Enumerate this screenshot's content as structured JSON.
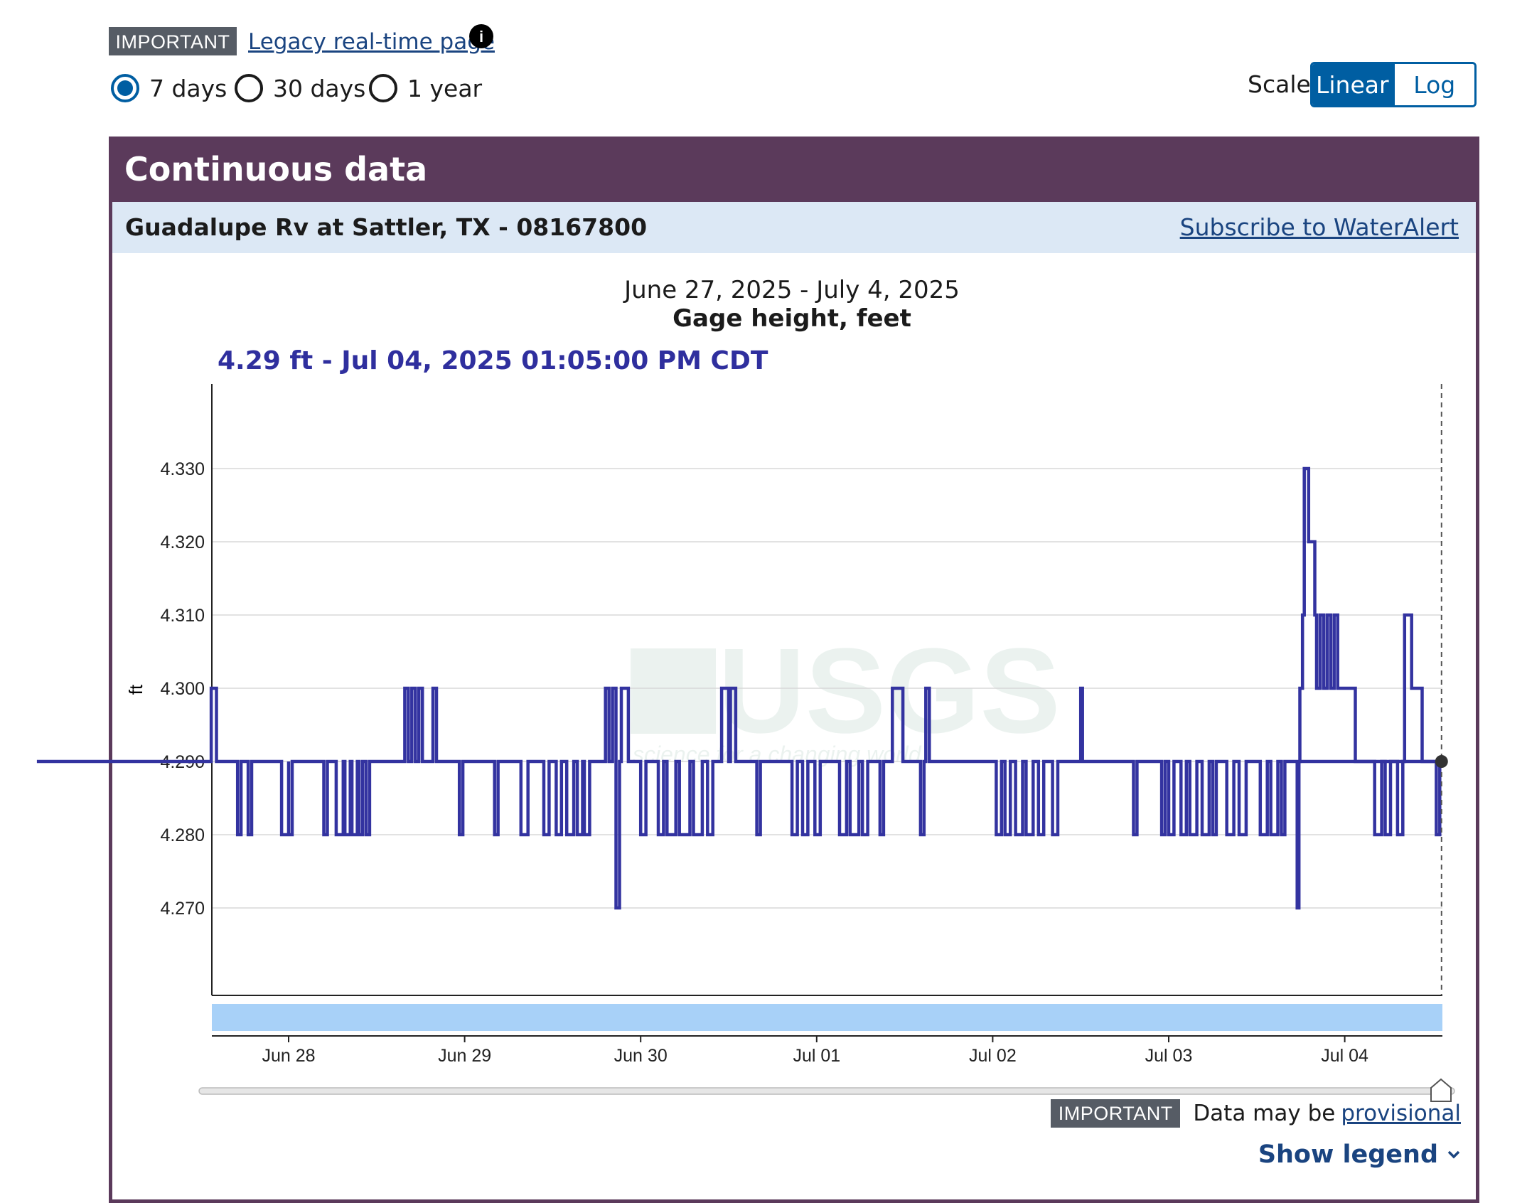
{
  "top": {
    "important_badge": "IMPORTANT",
    "legacy_link": "Legacy real-time page ",
    "info_glyph": "i",
    "period_options": [
      {
        "label": "7 days",
        "checked": true
      },
      {
        "label": "30 days",
        "checked": false
      },
      {
        "label": "1 year",
        "checked": false
      }
    ],
    "scale_label": "Scale",
    "scale_options": [
      "Linear",
      "Log"
    ],
    "scale_selected": "Linear"
  },
  "card": {
    "header": "Continuous data",
    "site_name": "Guadalupe Rv at Sattler, TX - 08167800",
    "subscribe_link": "Subscribe to WaterAlert"
  },
  "chart": {
    "date_range": "June 27, 2025 - July 4, 2025",
    "title": "Gage height, feet",
    "readout": "4.29 ft - Jul 04, 2025 01:05:00 PM CDT",
    "watermark": "USGS",
    "watermark_tagline": "science for a changing world"
  },
  "chart_data": {
    "type": "line",
    "title": "Gage height, feet",
    "subtitle": "June 27, 2025 - July 4, 2025",
    "ylabel": "ft",
    "ylim": [
      4.258,
      4.342
    ],
    "yticks": [
      4.27,
      4.28,
      4.29,
      4.3,
      4.31,
      4.32,
      4.33
    ],
    "ytick_labels": [
      "4.270",
      "4.280",
      "4.290",
      "4.300",
      "4.310",
      "4.320",
      "4.330"
    ],
    "xlim_days": [
      -0.44,
      6.55
    ],
    "x_ticks": [
      {
        "day": 1,
        "label": "Jun 28"
      },
      {
        "day": 2,
        "label": "Jun 29"
      },
      {
        "day": 3,
        "label": "Jun 30"
      },
      {
        "day": 4,
        "label": "Jul 01"
      },
      {
        "day": 5,
        "label": "Jul 02"
      },
      {
        "day": 6,
        "label": "Jul 03"
      },
      {
        "day": 7,
        "label": "Jul 04"
      }
    ],
    "baseline": 4.29,
    "excursions": [
      {
        "day": 0.56,
        "end": 0.59,
        "value": 4.3
      },
      {
        "day": 0.71,
        "end": 0.73,
        "value": 4.28
      },
      {
        "day": 0.77,
        "end": 0.79,
        "value": 4.28
      },
      {
        "day": 0.96,
        "end": 1.0,
        "value": 4.28
      },
      {
        "day": 1.0,
        "end": 1.02,
        "value": 4.28
      },
      {
        "day": 1.2,
        "end": 1.22,
        "value": 4.28
      },
      {
        "day": 1.27,
        "end": 1.31,
        "value": 4.28
      },
      {
        "day": 1.32,
        "end": 1.35,
        "value": 4.28
      },
      {
        "day": 1.36,
        "end": 1.39,
        "value": 4.28
      },
      {
        "day": 1.4,
        "end": 1.42,
        "value": 4.28
      },
      {
        "day": 1.44,
        "end": 1.46,
        "value": 4.28
      },
      {
        "day": 1.66,
        "end": 1.68,
        "value": 4.3
      },
      {
        "day": 1.7,
        "end": 1.72,
        "value": 4.3
      },
      {
        "day": 1.74,
        "end": 1.76,
        "value": 4.3
      },
      {
        "day": 1.82,
        "end": 1.84,
        "value": 4.3
      },
      {
        "day": 1.97,
        "end": 1.99,
        "value": 4.28
      },
      {
        "day": 2.17,
        "end": 2.19,
        "value": 4.28
      },
      {
        "day": 2.32,
        "end": 2.36,
        "value": 4.28
      },
      {
        "day": 2.45,
        "end": 2.48,
        "value": 4.28
      },
      {
        "day": 2.52,
        "end": 2.55,
        "value": 4.28
      },
      {
        "day": 2.58,
        "end": 2.62,
        "value": 4.28
      },
      {
        "day": 2.64,
        "end": 2.67,
        "value": 4.28
      },
      {
        "day": 2.68,
        "end": 2.71,
        "value": 4.28
      },
      {
        "day": 2.8,
        "end": 2.82,
        "value": 4.3
      },
      {
        "day": 2.84,
        "end": 2.86,
        "value": 4.3
      },
      {
        "day": 2.86,
        "end": 2.88,
        "value": 4.27
      },
      {
        "day": 2.89,
        "end": 2.93,
        "value": 4.3
      },
      {
        "day": 3.0,
        "end": 3.03,
        "value": 4.28
      },
      {
        "day": 3.1,
        "end": 3.13,
        "value": 4.28
      },
      {
        "day": 3.15,
        "end": 3.2,
        "value": 4.28
      },
      {
        "day": 3.22,
        "end": 3.28,
        "value": 4.28
      },
      {
        "day": 3.3,
        "end": 3.35,
        "value": 4.28
      },
      {
        "day": 3.38,
        "end": 3.41,
        "value": 4.28
      },
      {
        "day": 3.46,
        "end": 3.5,
        "value": 4.3
      },
      {
        "day": 3.51,
        "end": 3.54,
        "value": 4.3
      },
      {
        "day": 3.66,
        "end": 3.68,
        "value": 4.28
      },
      {
        "day": 3.86,
        "end": 3.89,
        "value": 4.28
      },
      {
        "day": 3.92,
        "end": 3.95,
        "value": 4.28
      },
      {
        "day": 3.99,
        "end": 4.02,
        "value": 4.28
      },
      {
        "day": 4.13,
        "end": 4.17,
        "value": 4.28
      },
      {
        "day": 4.19,
        "end": 4.24,
        "value": 4.28
      },
      {
        "day": 4.26,
        "end": 4.29,
        "value": 4.28
      },
      {
        "day": 4.36,
        "end": 4.38,
        "value": 4.28
      },
      {
        "day": 4.43,
        "end": 4.49,
        "value": 4.3
      },
      {
        "day": 4.59,
        "end": 4.61,
        "value": 4.28
      },
      {
        "day": 4.62,
        "end": 4.64,
        "value": 4.3
      },
      {
        "day": 5.02,
        "end": 5.05,
        "value": 4.28
      },
      {
        "day": 5.07,
        "end": 5.1,
        "value": 4.28
      },
      {
        "day": 5.13,
        "end": 5.17,
        "value": 4.28
      },
      {
        "day": 5.19,
        "end": 5.23,
        "value": 4.28
      },
      {
        "day": 5.26,
        "end": 5.29,
        "value": 4.28
      },
      {
        "day": 5.34,
        "end": 5.37,
        "value": 4.28
      },
      {
        "day": 5.5,
        "end": 5.51,
        "value": 4.3
      },
      {
        "day": 5.8,
        "end": 5.82,
        "value": 4.28
      },
      {
        "day": 5.96,
        "end": 5.98,
        "value": 4.28
      },
      {
        "day": 6.0,
        "end": 6.03,
        "value": 4.28
      },
      {
        "day": 6.07,
        "end": 6.1,
        "value": 4.28
      },
      {
        "day": 6.12,
        "end": 6.16,
        "value": 4.28
      },
      {
        "day": 6.19,
        "end": 6.23,
        "value": 4.28
      },
      {
        "day": 6.25,
        "end": 6.27,
        "value": 4.28
      },
      {
        "day": 6.33,
        "end": 6.37,
        "value": 4.28
      },
      {
        "day": 6.4,
        "end": 6.44,
        "value": 4.28
      },
      {
        "day": 6.52,
        "end": 6.56,
        "value": 4.28
      },
      {
        "day": 6.58,
        "end": 6.62,
        "value": 4.28
      },
      {
        "day": 6.64,
        "end": 6.66,
        "value": 4.28
      },
      {
        "day": 6.73,
        "end": 6.74,
        "value": 4.27
      },
      {
        "day": 7.17,
        "end": 7.21,
        "value": 4.28
      },
      {
        "day": 7.23,
        "end": 7.26,
        "value": 4.28
      },
      {
        "day": 7.3,
        "end": 7.33,
        "value": 4.28
      },
      {
        "day": 7.52,
        "end": 7.54,
        "value": 4.28
      }
    ],
    "event_series": [
      {
        "day": 6.74,
        "value": 4.29
      },
      {
        "day": 6.745,
        "value": 4.3
      },
      {
        "day": 6.76,
        "value": 4.31
      },
      {
        "day": 6.77,
        "value": 4.33
      },
      {
        "day": 6.79,
        "value": 4.33
      },
      {
        "day": 6.795,
        "value": 4.32
      },
      {
        "day": 6.82,
        "value": 4.32
      },
      {
        "day": 6.83,
        "value": 4.31
      },
      {
        "day": 6.84,
        "value": 4.3
      },
      {
        "day": 6.86,
        "value": 4.31
      },
      {
        "day": 6.88,
        "value": 4.3
      },
      {
        "day": 6.9,
        "value": 4.31
      },
      {
        "day": 6.92,
        "value": 4.3
      },
      {
        "day": 6.94,
        "value": 4.31
      },
      {
        "day": 6.96,
        "value": 4.3
      },
      {
        "day": 7.05,
        "value": 4.3
      },
      {
        "day": 7.06,
        "value": 4.29
      },
      {
        "day": 7.25,
        "value": 4.29
      },
      {
        "day": 7.33,
        "value": 4.29
      },
      {
        "day": 7.34,
        "value": 4.31
      },
      {
        "day": 7.37,
        "value": 4.31
      },
      {
        "day": 7.38,
        "value": 4.3
      },
      {
        "day": 7.43,
        "value": 4.3
      },
      {
        "day": 7.44,
        "value": 4.29
      },
      {
        "day": 7.55,
        "value": 4.29
      }
    ],
    "current_value": 4.29,
    "current_day": 7.55
  },
  "footer": {
    "important_badge": "IMPORTANT",
    "warn_text": "Data may be",
    "provisional_link": "provisional",
    "show_legend": "Show legend"
  },
  "colors": {
    "header": "#5b3a5b",
    "series": "#3333a0",
    "link": "#1a4480",
    "accent": "#005ea2",
    "brush": "#a8d1f8"
  }
}
